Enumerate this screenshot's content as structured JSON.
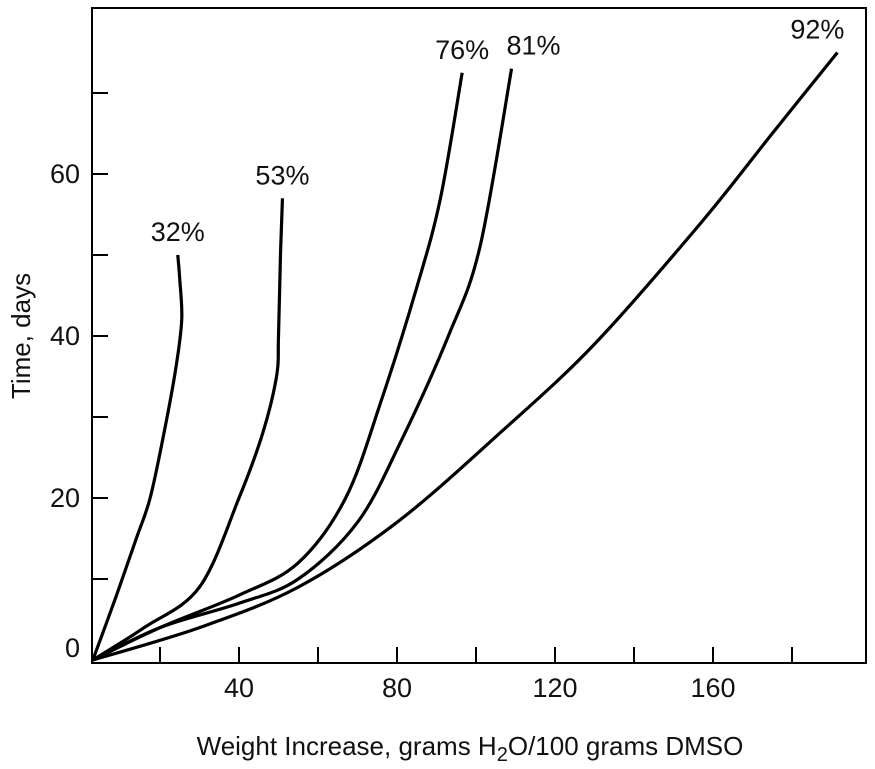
{
  "chart_data": {
    "type": "line",
    "title": "",
    "xlabel": "Weight Increase, grams H",
    "xlabel_sub": "2",
    "xlabel_rest": "O/100 grams DMSO",
    "ylabel": "Time, days",
    "xlim": [
      0,
      198
    ],
    "ylim": [
      0,
      81
    ],
    "x_ticks": [
      40,
      80,
      120,
      160
    ],
    "x_minor_ticks": [
      20,
      60,
      100,
      140,
      180
    ],
    "y_ticks": [
      0,
      20,
      40,
      60
    ],
    "y_minor_ticks": [
      10,
      30,
      50,
      70
    ],
    "grid": false,
    "series": [
      {
        "name": "32%",
        "points": [
          [
            3,
            0
          ],
          [
            9,
            8
          ],
          [
            14,
            15
          ],
          [
            17.5,
            20
          ],
          [
            21,
            28
          ],
          [
            24,
            36
          ],
          [
            25.5,
            42
          ],
          [
            25,
            47
          ],
          [
            24.5,
            50
          ]
        ]
      },
      {
        "name": "53%",
        "points": [
          [
            3,
            0
          ],
          [
            16,
            4
          ],
          [
            30,
            9
          ],
          [
            40,
            20
          ],
          [
            46,
            28
          ],
          [
            49.5,
            35
          ],
          [
            50,
            40
          ],
          [
            50.5,
            50
          ],
          [
            51,
            57
          ]
        ]
      },
      {
        "name": "76%",
        "points": [
          [
            3,
            0
          ],
          [
            20,
            4
          ],
          [
            40,
            8
          ],
          [
            55,
            12
          ],
          [
            67,
            20
          ],
          [
            76,
            32
          ],
          [
            85,
            46
          ],
          [
            91,
            57
          ],
          [
            96.5,
            72.5
          ]
        ]
      },
      {
        "name": "81%",
        "points": [
          [
            3,
            0
          ],
          [
            20,
            4
          ],
          [
            40,
            7
          ],
          [
            55,
            10
          ],
          [
            70,
            17
          ],
          [
            81,
            27
          ],
          [
            93,
            40
          ],
          [
            101,
            51
          ],
          [
            109,
            73
          ]
        ]
      },
      {
        "name": "92%",
        "points": [
          [
            3,
            0
          ],
          [
            30,
            4
          ],
          [
            55,
            9
          ],
          [
            80,
            17
          ],
          [
            106,
            28
          ],
          [
            130,
            39
          ],
          [
            157,
            54
          ],
          [
            175,
            65
          ],
          [
            191.5,
            75
          ]
        ]
      }
    ]
  }
}
